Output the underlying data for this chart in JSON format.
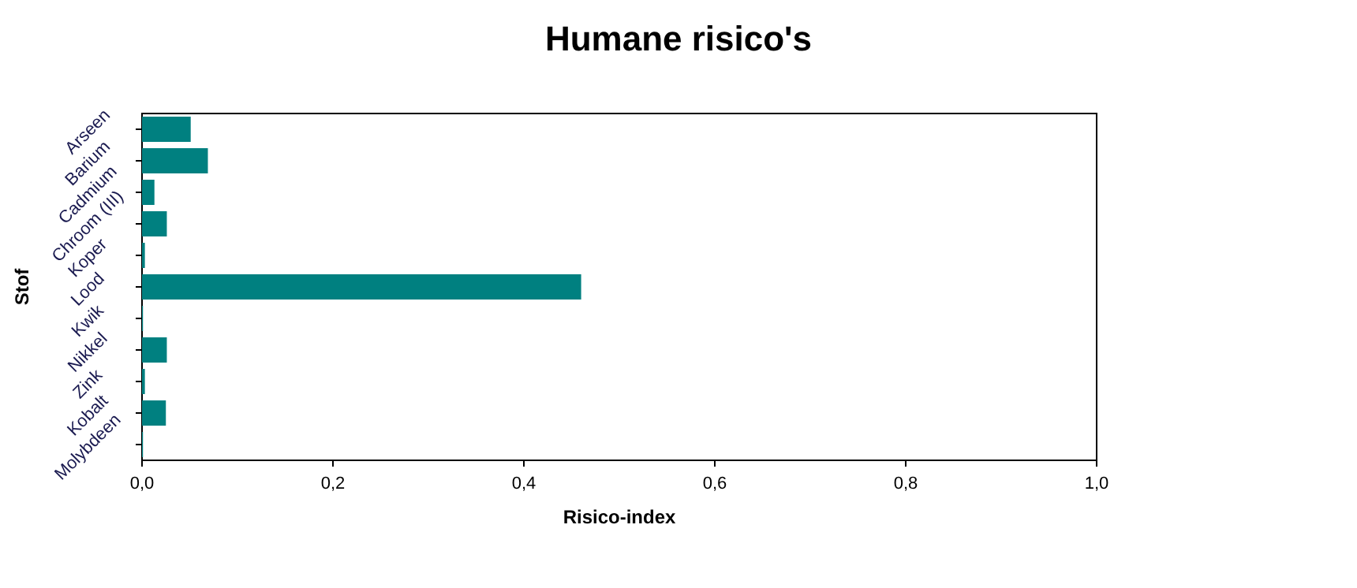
{
  "chart_data": {
    "type": "bar",
    "orientation": "horizontal",
    "title": "Humane risico's",
    "xlabel": "Risico-index",
    "ylabel": "Stof",
    "categories": [
      "Arseen",
      "Barium",
      "Cadmium",
      "Chroom (III)",
      "Koper",
      "Lood",
      "Kwik",
      "Nikkel",
      "Zink",
      "Kobalt",
      "Molybdeen"
    ],
    "values": [
      0.051,
      0.069,
      0.013,
      0.026,
      0.003,
      0.46,
      0.001,
      0.026,
      0.003,
      0.025,
      0.001
    ],
    "color": "#008080",
    "xlim": [
      0,
      1
    ],
    "xticks": [
      {
        "value": 0,
        "label": "0,0"
      },
      {
        "value": 0.2,
        "label": "0,2"
      },
      {
        "value": 0.4,
        "label": "0,4"
      },
      {
        "value": 0.6,
        "label": "0,6"
      },
      {
        "value": 0.8,
        "label": "0,8"
      },
      {
        "value": 1,
        "label": "1,0"
      }
    ],
    "grid": false
  }
}
